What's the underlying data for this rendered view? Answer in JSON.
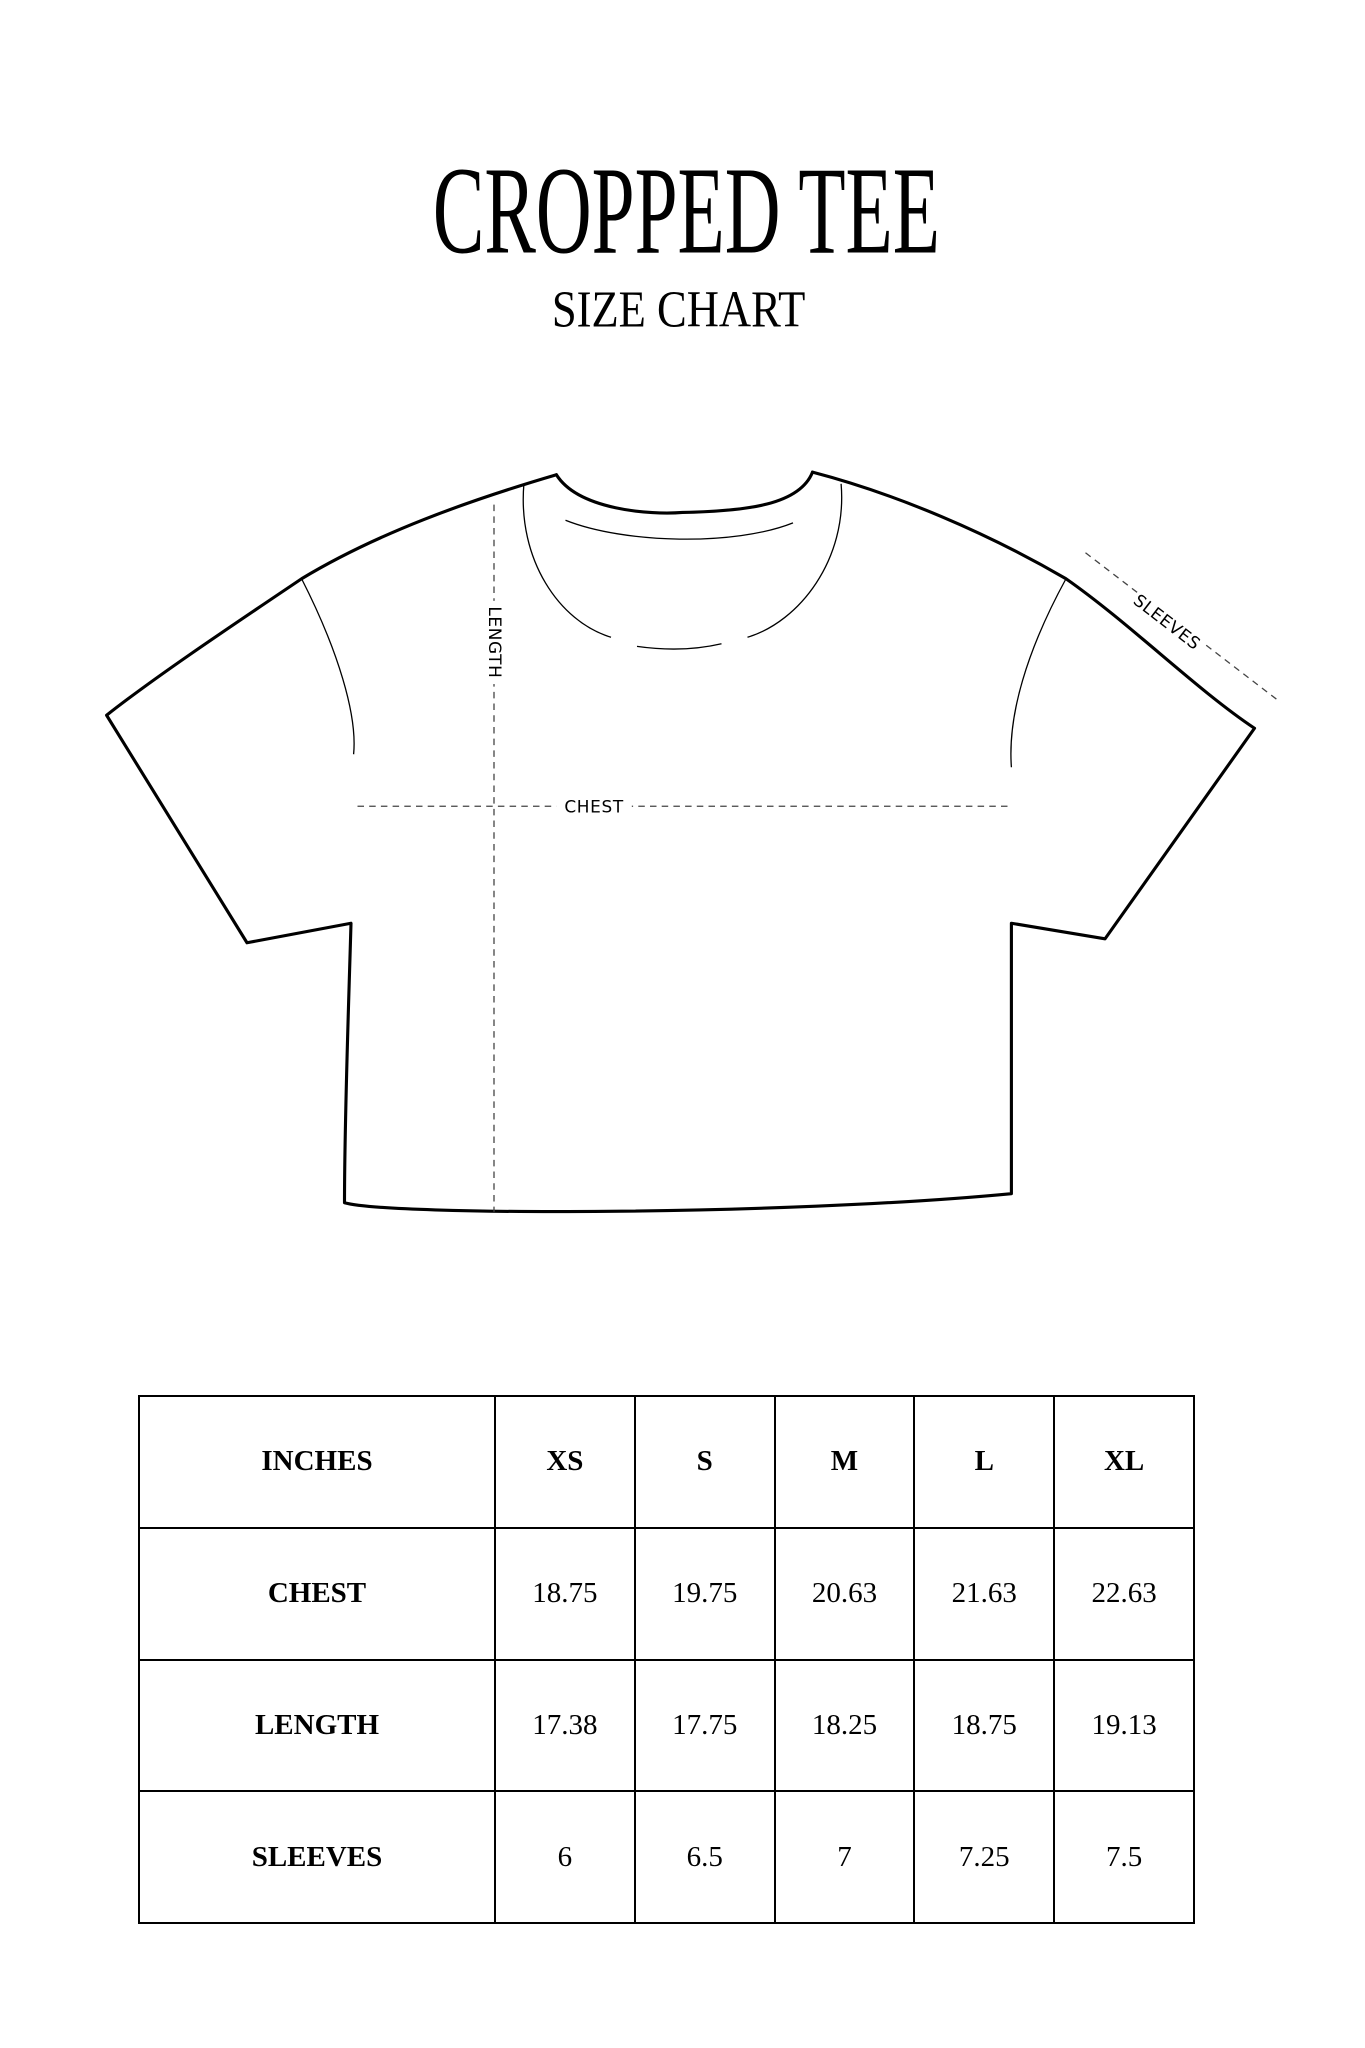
{
  "header": {
    "title": "CROPPED TEE",
    "subtitle": "SIZE CHART"
  },
  "diagram": {
    "labels": {
      "length": "LENGTH",
      "chest": "CHEST",
      "sleeves": "SLEEVES"
    }
  },
  "table": {
    "columns": [
      "INCHES",
      "XS",
      "S",
      "M",
      "L",
      "XL"
    ],
    "rows": [
      {
        "label": "CHEST",
        "values": [
          "18.75",
          "19.75",
          "20.63",
          "21.63",
          "22.63"
        ]
      },
      {
        "label": "LENGTH",
        "values": [
          "17.38",
          "17.75",
          "18.25",
          "18.75",
          "19.13"
        ]
      },
      {
        "label": "SLEEVES",
        "values": [
          "6",
          "6.5",
          "7",
          "7.25",
          "7.5"
        ]
      }
    ]
  }
}
